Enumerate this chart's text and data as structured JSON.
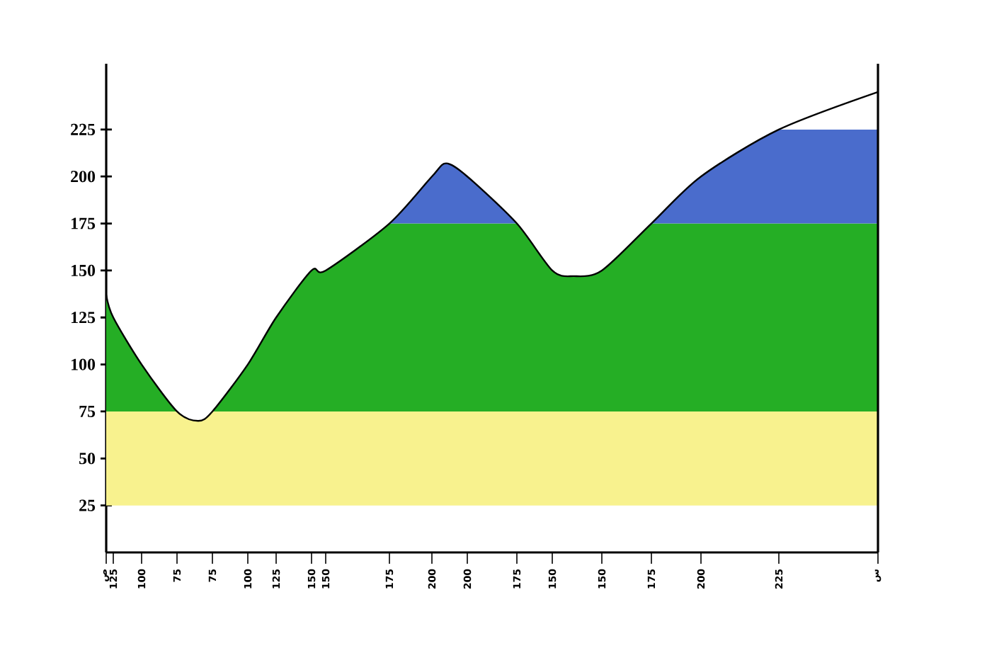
{
  "chart_data": {
    "type": "line",
    "categories": [
      "ص",
      "125",
      null,
      null,
      null,
      "100",
      null,
      null,
      null,
      null,
      "75",
      null,
      null,
      null,
      null,
      "75",
      null,
      null,
      null,
      null,
      "100",
      null,
      null,
      null,
      "125",
      null,
      null,
      null,
      null,
      "150",
      null,
      "150",
      null,
      null,
      null,
      null,
      null,
      null,
      null,
      null,
      "175",
      null,
      null,
      null,
      null,
      null,
      "200",
      null,
      null,
      null,
      null,
      "200",
      null,
      null,
      null,
      null,
      null,
      null,
      "175",
      null,
      null,
      null,
      null,
      "150",
      null,
      null,
      null,
      null,
      null,
      null,
      "150",
      null,
      null,
      null,
      null,
      null,
      null,
      "175",
      null,
      null,
      null,
      null,
      null,
      null,
      "200",
      null,
      null,
      null,
      null,
      null,
      null,
      null,
      null,
      null,
      null,
      "225",
      null,
      null,
      null,
      null,
      null,
      null,
      null,
      null,
      null,
      null,
      null,
      null,
      null,
      "س"
    ],
    "series": [
      {
        "color": "#000000",
        "values": [
          137,
          125,
          null,
          null,
          null,
          100,
          null,
          null,
          null,
          null,
          75,
          null,
          null,
          70,
          null,
          75,
          null,
          null,
          null,
          null,
          100,
          null,
          null,
          null,
          125,
          null,
          null,
          null,
          null,
          150,
          null,
          150,
          null,
          null,
          null,
          null,
          null,
          null,
          null,
          null,
          175,
          null,
          null,
          null,
          null,
          null,
          200,
          null,
          207,
          null,
          null,
          200,
          null,
          null,
          null,
          null,
          null,
          null,
          175,
          null,
          null,
          null,
          null,
          150,
          null,
          null,
          147,
          null,
          null,
          null,
          150,
          null,
          null,
          null,
          null,
          null,
          null,
          175,
          null,
          null,
          null,
          null,
          null,
          null,
          200,
          null,
          null,
          null,
          null,
          null,
          null,
          null,
          null,
          null,
          null,
          225,
          null,
          null,
          null,
          null,
          null,
          null,
          null,
          null,
          null,
          null,
          null,
          null,
          null,
          245
        ]
      }
    ],
    "ylim": [
      0,
      260
    ],
    "yticks": [
      25,
      50,
      75,
      100,
      125,
      150,
      175,
      200,
      225
    ],
    "bands": [
      {
        "axis": "y",
        "from": 25,
        "to": 75,
        "color": "#f8f28e"
      },
      {
        "axis": "y",
        "from": 75,
        "to": 175,
        "color": "#25ae25"
      },
      {
        "axis": "y",
        "from": 175,
        "to": 225,
        "color": "#4a6ccc"
      }
    ],
    "grid": false,
    "line_style": "solid"
  }
}
